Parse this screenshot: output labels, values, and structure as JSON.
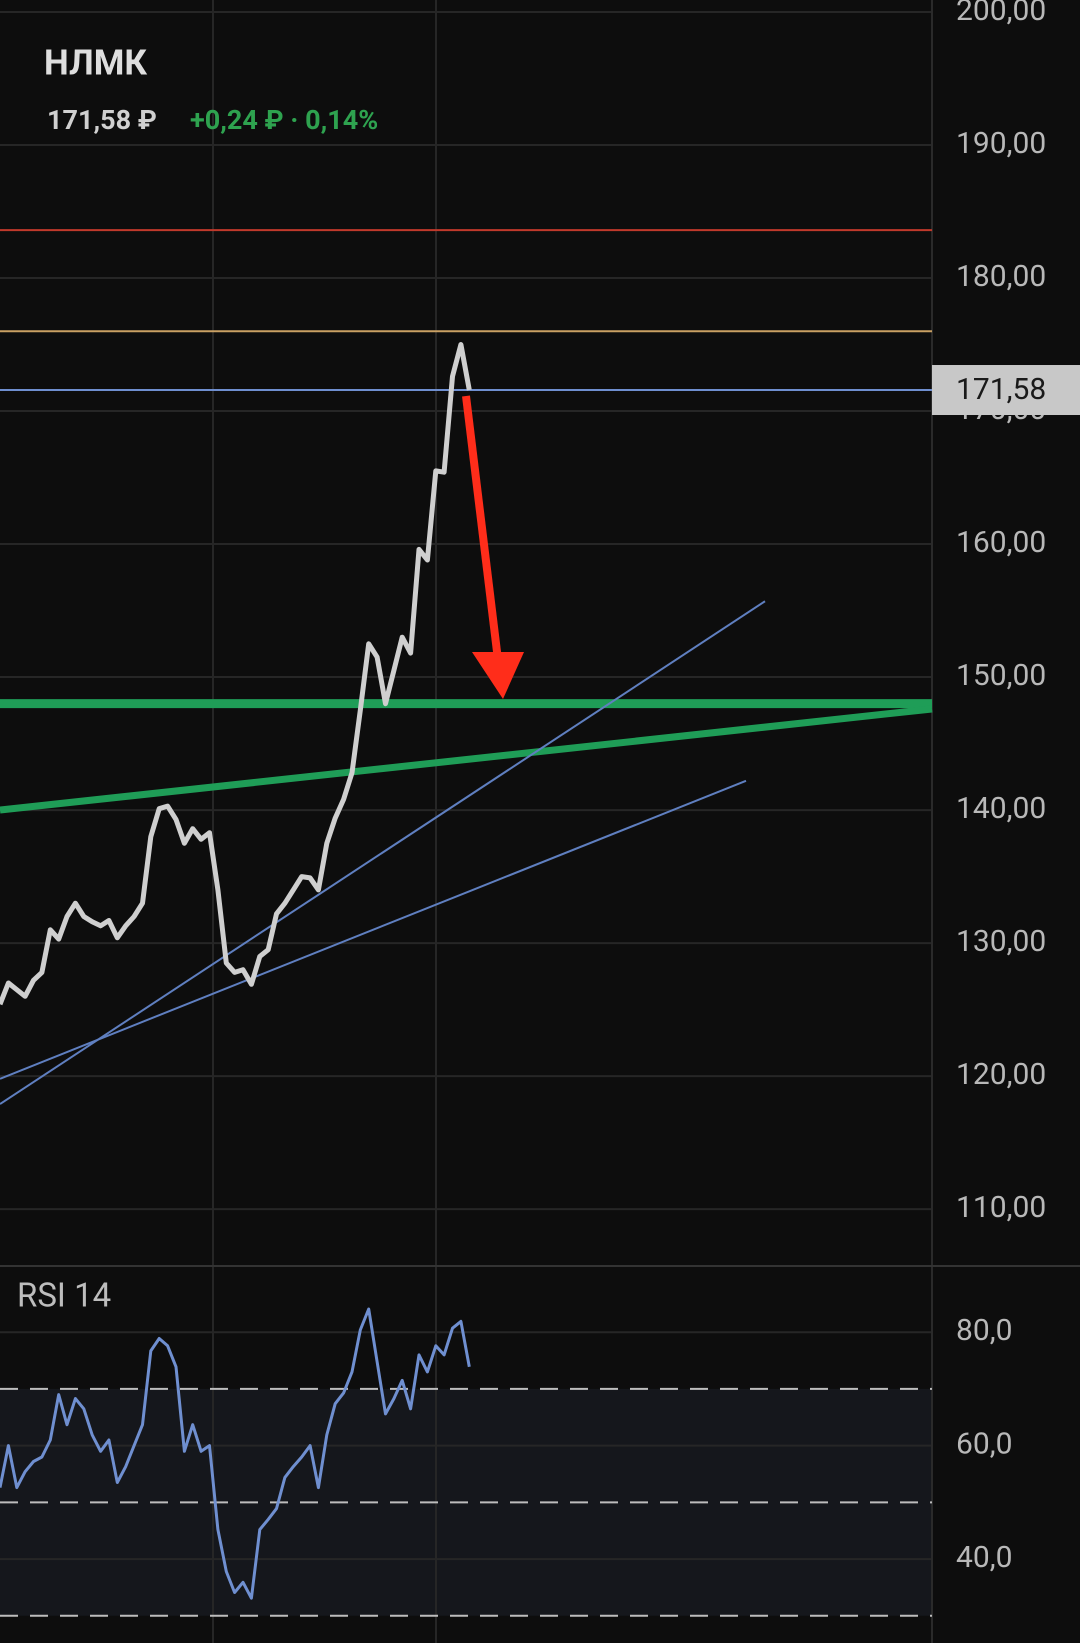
{
  "header": {
    "title": "НЛМК",
    "price": "171,58 ₽",
    "change": "+0,24 ₽ · 0,14%"
  },
  "chart_data": [
    {
      "type": "line",
      "series": [
        {
          "color": "#cfcfcf",
          "values": [
            125.4,
            127.0,
            126.5,
            126.0,
            127.2,
            127.8,
            131.0,
            130.3,
            132.0,
            133.0,
            132.0,
            131.6,
            131.3,
            131.7,
            130.4,
            131.3,
            132.0,
            133.0,
            138.0,
            140.1,
            140.3,
            139.3,
            137.5,
            138.6,
            137.8,
            138.3,
            134.0,
            128.5,
            127.8,
            128.0,
            126.9,
            129.0,
            129.5,
            132.2,
            133.0,
            134.0,
            135.0,
            134.9,
            134.0,
            137.5,
            139.4,
            140.8,
            142.8,
            147.5,
            152.5,
            151.5,
            148.0,
            150.5,
            153.0,
            151.8,
            159.6,
            158.8,
            165.5,
            165.4,
            172.6,
            175.0,
            171.58
          ]
        }
      ],
      "ylim": [
        105.8,
        200.9
      ],
      "yticks": [
        {
          "value": 200,
          "label": "200,00"
        },
        {
          "value": 190,
          "label": "190,00"
        },
        {
          "value": 180,
          "label": "180,00"
        },
        {
          "value": 170,
          "label": "170,00"
        },
        {
          "value": 160,
          "label": "160,00"
        },
        {
          "value": 150,
          "label": "150,00"
        },
        {
          "value": 140,
          "label": "140,00"
        },
        {
          "value": 130,
          "label": "130,00"
        },
        {
          "value": 120,
          "label": "120,00"
        },
        {
          "value": 110,
          "label": "110,00"
        }
      ],
      "grid": true,
      "price_tag": {
        "value": 171.58,
        "label": "171,58"
      },
      "levels": [
        {
          "value": 183.6,
          "color": "#c0392b",
          "width": 2
        },
        {
          "value": 176.0,
          "color": "#c9a063",
          "width": 2
        },
        {
          "value": 171.58,
          "color": "#6f8fd0",
          "width": 2
        },
        {
          "value": 148.0,
          "color": "#1f9d57",
          "width": 9
        }
      ],
      "trendlines": [
        {
          "from": 140.0,
          "to": 147.6,
          "color": "#1f9d57",
          "width": 7
        },
        {
          "from": 117.9,
          "to": 155.7,
          "color": "#5f7fc0",
          "width": 2
        },
        {
          "from": 119.8,
          "to": 142.2,
          "color": "#5f7fc0",
          "width": 2
        }
      ]
    },
    {
      "type": "line",
      "title": "RSI 14",
      "series": [
        {
          "color": "#6f8fd0",
          "values": [
            52.6,
            60,
            52.6,
            55.4,
            57.2,
            58,
            61,
            69,
            63.7,
            68.3,
            66.5,
            61.9,
            59,
            61,
            53.5,
            56.3,
            60,
            63.7,
            76.7,
            78.9,
            77.6,
            73.9,
            59,
            63.7,
            59,
            60,
            45.2,
            37.8,
            34.1,
            35.9,
            33.1,
            45.2,
            47,
            48.9,
            54.4,
            56.3,
            58,
            60,
            52.6,
            61.9,
            67.4,
            69.3,
            73,
            80.4,
            84.1,
            74.8,
            65.6,
            68.3,
            71.5,
            66.5,
            76,
            73,
            77.6,
            76,
            80.7,
            81.9,
            73.9
          ]
        }
      ],
      "ylim": [
        25.2,
        91.5
      ],
      "yticks": [
        {
          "value": 80,
          "label": "80,0"
        },
        {
          "value": 60,
          "label": "60,0"
        },
        {
          "value": 40,
          "label": "40,0"
        }
      ],
      "grid": true,
      "levels": [
        {
          "value": 70,
          "color": "#bdbdbd",
          "width": 2,
          "dash": true
        },
        {
          "value": 50,
          "color": "#bdbdbd",
          "width": 2,
          "dash": true
        },
        {
          "value": 30,
          "color": "#bdbdbd",
          "width": 2,
          "dash": true
        }
      ]
    }
  ]
}
